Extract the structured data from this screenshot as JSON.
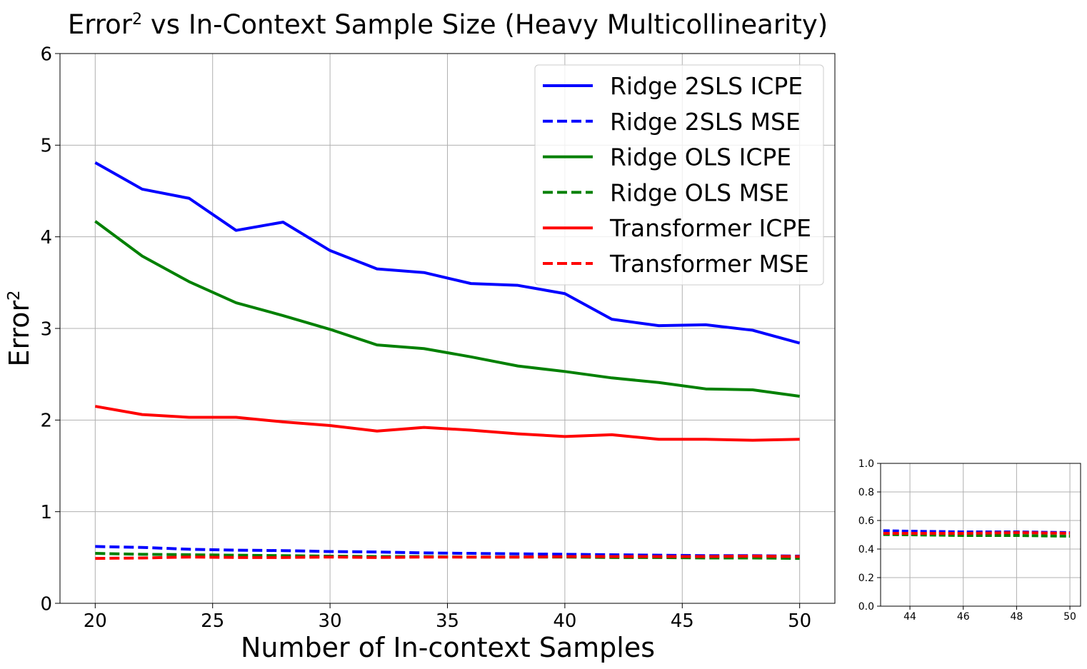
{
  "chart_data": [
    {
      "type": "line",
      "title": "Error vs In-Context Sample Size (Heavy Multicollinearity)",
      "title_superscript": "2",
      "xlabel": "Number of In-context Samples",
      "ylabel": "Error",
      "ylabel_superscript": "2",
      "x": [
        20,
        22,
        24,
        26,
        28,
        30,
        32,
        34,
        36,
        38,
        40,
        42,
        44,
        46,
        48,
        50
      ],
      "xlim": [
        18.5,
        51.5
      ],
      "ylim": [
        0,
        6
      ],
      "xticks": [
        20,
        25,
        30,
        35,
        40,
        45,
        50
      ],
      "yticks": [
        0,
        1,
        2,
        3,
        4,
        5,
        6
      ],
      "grid": true,
      "legend_position": "top-right",
      "series": [
        {
          "name": "Ridge 2SLS ICPE",
          "color": "#0000ff",
          "dash": "solid",
          "values": [
            4.81,
            4.52,
            4.42,
            4.07,
            4.16,
            3.85,
            3.65,
            3.61,
            3.49,
            3.47,
            3.38,
            3.1,
            3.03,
            3.04,
            2.98,
            2.84
          ]
        },
        {
          "name": "Ridge 2SLS MSE",
          "color": "#0000ff",
          "dash": "dashed",
          "values": [
            0.62,
            0.61,
            0.59,
            0.58,
            0.575,
            0.565,
            0.56,
            0.55,
            0.545,
            0.54,
            0.535,
            0.53,
            0.525,
            0.52,
            0.52,
            0.515
          ]
        },
        {
          "name": "Ridge OLS ICPE",
          "color": "#008000",
          "dash": "solid",
          "values": [
            4.17,
            3.79,
            3.51,
            3.28,
            3.14,
            2.99,
            2.82,
            2.78,
            2.69,
            2.59,
            2.53,
            2.46,
            2.41,
            2.34,
            2.33,
            2.26
          ]
        },
        {
          "name": "Ridge OLS MSE",
          "color": "#008000",
          "dash": "dashed",
          "values": [
            0.545,
            0.535,
            0.53,
            0.525,
            0.52,
            0.515,
            0.51,
            0.51,
            0.505,
            0.505,
            0.505,
            0.5,
            0.5,
            0.495,
            0.495,
            0.49
          ]
        },
        {
          "name": "Transformer ICPE",
          "color": "#ff0000",
          "dash": "solid",
          "values": [
            2.15,
            2.06,
            2.03,
            2.03,
            1.98,
            1.94,
            1.88,
            1.92,
            1.89,
            1.85,
            1.82,
            1.84,
            1.79,
            1.79,
            1.78,
            1.79
          ]
        },
        {
          "name": "Transformer MSE",
          "color": "#ff0000",
          "dash": "dashed",
          "values": [
            0.49,
            0.495,
            0.505,
            0.5,
            0.5,
            0.505,
            0.5,
            0.505,
            0.505,
            0.505,
            0.51,
            0.51,
            0.51,
            0.51,
            0.515,
            0.51
          ]
        }
      ]
    },
    {
      "type": "line",
      "title": "",
      "xlabel": "",
      "ylabel": "",
      "x": [
        43,
        44,
        46,
        48,
        50
      ],
      "xlim": [
        42.9,
        50.4
      ],
      "ylim": [
        0,
        1
      ],
      "xticks": [
        44,
        46,
        48,
        50
      ],
      "yticks": [
        "0.0",
        "0.2",
        "0.4",
        "0.6",
        "0.8",
        "1.0"
      ],
      "grid": true,
      "series": [
        {
          "color": "#0000ff",
          "dash": "dashed",
          "values": [
            0.528,
            0.525,
            0.52,
            0.52,
            0.515
          ]
        },
        {
          "color": "#008000",
          "dash": "dashed",
          "values": [
            0.502,
            0.5,
            0.495,
            0.495,
            0.49
          ]
        },
        {
          "color": "#ff0000",
          "dash": "dashed",
          "values": [
            0.51,
            0.51,
            0.51,
            0.515,
            0.51
          ]
        }
      ]
    }
  ]
}
